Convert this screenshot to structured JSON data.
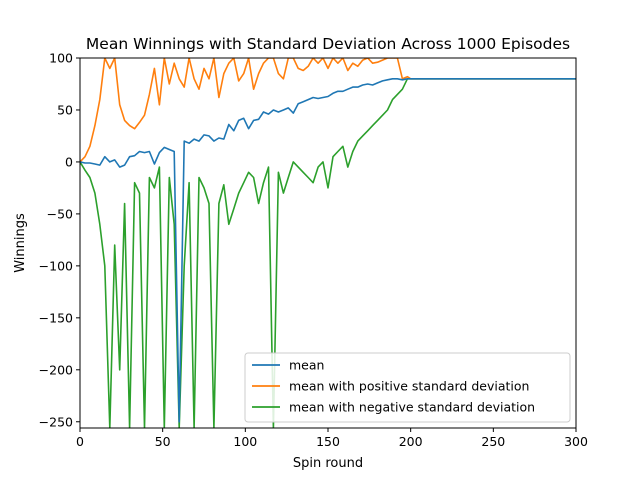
{
  "chart_data": {
    "type": "line",
    "title": "Mean Winnings with Standard Deviation Across 1000 Episodes",
    "xlabel": "Spin round",
    "ylabel": "Winnings",
    "xlim": [
      0,
      300
    ],
    "ylim": [
      -256,
      100
    ],
    "xticks": [
      0,
      50,
      100,
      150,
      200,
      250,
      300
    ],
    "yticks": [
      100,
      50,
      0,
      -50,
      -100,
      -150,
      -200,
      -250
    ],
    "legend": "lower-right",
    "grid": false,
    "x": [
      0,
      3,
      6,
      9,
      12,
      15,
      18,
      21,
      24,
      27,
      30,
      33,
      36,
      39,
      42,
      45,
      48,
      51,
      54,
      57,
      60,
      63,
      66,
      69,
      72,
      75,
      78,
      81,
      84,
      87,
      90,
      93,
      96,
      99,
      102,
      105,
      108,
      111,
      114,
      117,
      120,
      123,
      126,
      129,
      132,
      135,
      138,
      141,
      144,
      147,
      150,
      153,
      156,
      159,
      162,
      165,
      168,
      171,
      174,
      177,
      180,
      183,
      186,
      189,
      192,
      195,
      198,
      200,
      210,
      220,
      230,
      240,
      250,
      260,
      270,
      280,
      290,
      300
    ],
    "series": [
      {
        "name": "mean",
        "color": "#1f77b4",
        "values": [
          0,
          -1,
          -1,
          -2,
          -3,
          5,
          0,
          2,
          -5,
          -3,
          5,
          6,
          10,
          9,
          10,
          -2,
          9,
          14,
          12,
          10,
          -250,
          20,
          18,
          22,
          20,
          26,
          25,
          20,
          23,
          22,
          36,
          30,
          40,
          42,
          32,
          40,
          41,
          48,
          46,
          50,
          48,
          50,
          52,
          47,
          56,
          58,
          60,
          62,
          61,
          62,
          63,
          66,
          68,
          68,
          70,
          72,
          72,
          74,
          75,
          74,
          76,
          78,
          79,
          80,
          80,
          79,
          80,
          80,
          80,
          80,
          80,
          80,
          80,
          80,
          80,
          80,
          80,
          80
        ]
      },
      {
        "name": "mean with positive standard deviation",
        "color": "#ff7f0e",
        "values": [
          0,
          5,
          15,
          35,
          60,
          100,
          90,
          100,
          55,
          40,
          35,
          32,
          38,
          45,
          65,
          90,
          55,
          100,
          75,
          95,
          80,
          72,
          100,
          80,
          70,
          90,
          80,
          100,
          62,
          85,
          95,
          100,
          78,
          85,
          100,
          70,
          85,
          95,
          100,
          100,
          85,
          80,
          100,
          100,
          90,
          88,
          92,
          100,
          95,
          100,
          90,
          100,
          95,
          100,
          88,
          95,
          92,
          98,
          100,
          95,
          96,
          98,
          100,
          100,
          100,
          80,
          82,
          80,
          80,
          80,
          80,
          80,
          80,
          80,
          80,
          80,
          80,
          80
        ]
      },
      {
        "name": "mean with negative standard deviation",
        "color": "#2ca02c",
        "values": [
          0,
          -8,
          -15,
          -30,
          -60,
          -100,
          -256,
          -80,
          -200,
          -40,
          -256,
          -20,
          -30,
          -256,
          -15,
          -25,
          -5,
          -256,
          -15,
          -60,
          -256,
          -100,
          -20,
          -256,
          -15,
          -25,
          -40,
          -256,
          -40,
          -22,
          -60,
          -45,
          -30,
          -20,
          -10,
          -15,
          -40,
          -20,
          -5,
          -256,
          -10,
          -30,
          -15,
          0,
          -5,
          -10,
          -15,
          -20,
          -5,
          0,
          -25,
          5,
          10,
          15,
          -5,
          10,
          20,
          25,
          30,
          35,
          40,
          45,
          50,
          60,
          65,
          70,
          80,
          80,
          80,
          80,
          80,
          80,
          80,
          80,
          80,
          80,
          80,
          80
        ]
      }
    ]
  }
}
